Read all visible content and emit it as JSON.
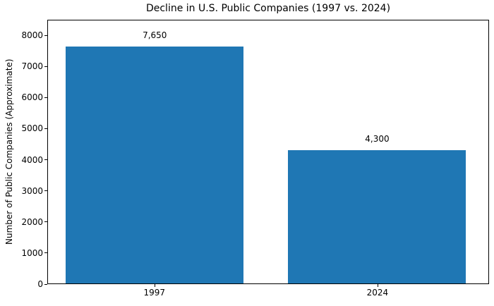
{
  "chart_data": {
    "type": "bar",
    "title": "Decline in U.S. Public Companies (1997 vs. 2024)",
    "xlabel": "",
    "ylabel": "Number of Public Companies (Approximate)",
    "categories": [
      "1997",
      "2024"
    ],
    "values": [
      7650,
      4300
    ],
    "value_labels": [
      "7,650",
      "4,300"
    ],
    "bar_color": "#1f77b4",
    "yticks": [
      0,
      1000,
      2000,
      3000,
      4000,
      5000,
      6000,
      7000,
      8000
    ],
    "ylim": [
      0,
      8500
    ],
    "xlim": [
      -0.48,
      1.5
    ],
    "bar_width": 0.8,
    "grid": false,
    "legend": null,
    "background": "#ffffff"
  }
}
